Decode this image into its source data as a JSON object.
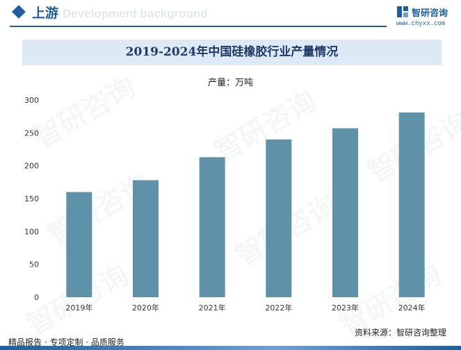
{
  "header": {
    "section_title": "上游",
    "section_subtitle": "Development background",
    "brand_name": "智研咨询",
    "brand_url": "www.chyxx.com"
  },
  "watermark_text": "智研咨询",
  "chart_data": {
    "type": "bar",
    "title": "2019-2024年中国硅橡胶行业产量情况",
    "legend_label": "产量：万吨",
    "categories": [
      "2019年",
      "2020年",
      "2021年",
      "2022年",
      "2023年",
      "2024年"
    ],
    "values": [
      160,
      178,
      213,
      240,
      257,
      281
    ],
    "ylim": [
      0,
      300
    ],
    "yticks": [
      0,
      50,
      100,
      150,
      200,
      250,
      300
    ],
    "bar_color": "#5f91a9",
    "grid": false
  },
  "footer": {
    "left_text": "精品报告 · 专项定制 · 品质服务",
    "source_text": "资料来源：智研咨询整理"
  },
  "colors": {
    "accent": "#1f5d9e",
    "title_band": "#dde9f5"
  }
}
